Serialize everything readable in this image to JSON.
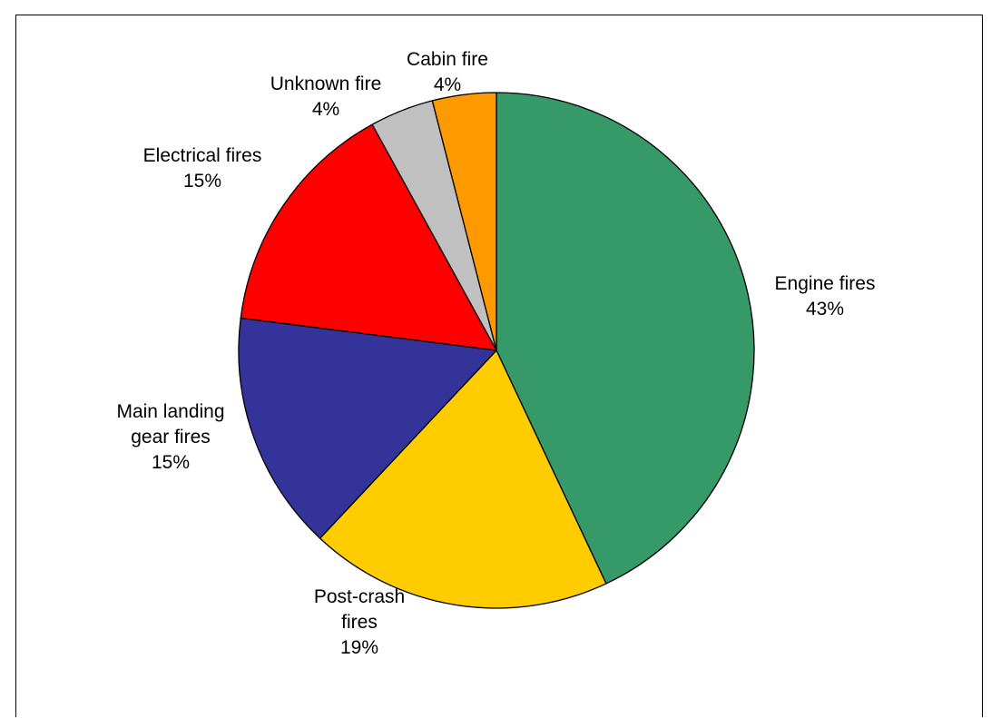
{
  "chart_data": {
    "type": "pie",
    "title": "",
    "start_angle_deg": 0,
    "direction": "clockwise",
    "slices": [
      {
        "label_lines": [
          "Engine fires"
        ],
        "value_label": "43%",
        "value": 43,
        "color": "#359A67"
      },
      {
        "label_lines": [
          "Post-crash",
          "fires"
        ],
        "value_label": "19%",
        "value": 19,
        "color": "#FFCC00"
      },
      {
        "label_lines": [
          "Main landing",
          "gear fires"
        ],
        "value_label": "15%",
        "value": 15,
        "color": "#333399"
      },
      {
        "label_lines": [
          "Electrical fires"
        ],
        "value_label": "15%",
        "value": 15,
        "color": "#FF0000"
      },
      {
        "label_lines": [
          "Unknown fire"
        ],
        "value_label": "4%",
        "value": 4,
        "color": "#C0C0C0"
      },
      {
        "label_lines": [
          "Cabin fire"
        ],
        "value_label": "4%",
        "value": 4,
        "color": "#FF9900"
      }
    ]
  }
}
